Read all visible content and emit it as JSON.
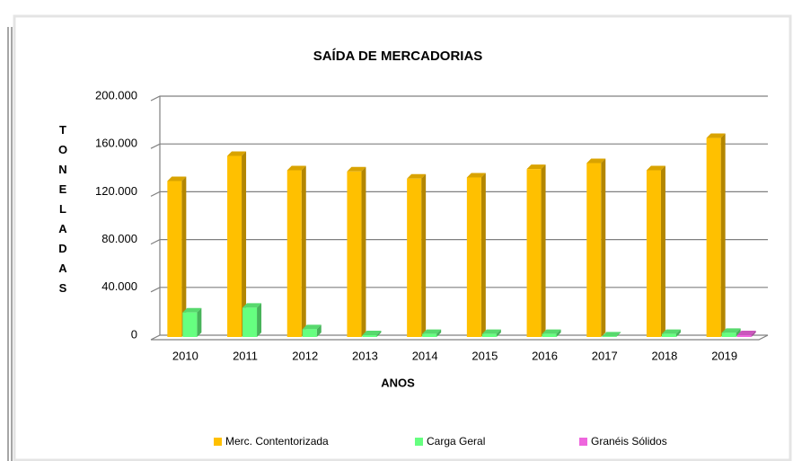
{
  "chart_data": {
    "type": "bar3d",
    "title": "SAÍDA DE MERCADORIAS",
    "x_label": "ANOS",
    "y_label": "TONELADAS",
    "categories": [
      "2010",
      "2011",
      "2012",
      "2013",
      "2014",
      "2015",
      "2016",
      "2017",
      "2018",
      "2019"
    ],
    "series": [
      {
        "name": "Merc. Contentorizada",
        "color": "#ffc000",
        "values": [
          132000,
          153000,
          141000,
          140000,
          134000,
          135000,
          142000,
          147000,
          141000,
          168000
        ]
      },
      {
        "name": "Carga Geral",
        "color": "#66ff80",
        "values": [
          22000,
          26000,
          8000,
          3000,
          4000,
          4000,
          4000,
          2000,
          4000,
          5000
        ]
      },
      {
        "name": "Granéis Sólidos",
        "color": "#ee66dd",
        "values": [
          null,
          null,
          null,
          null,
          null,
          null,
          null,
          null,
          null,
          3000
        ]
      }
    ],
    "ylim": [
      0,
      200000
    ],
    "yticks": [
      0,
      {
        "value": 40000,
        "label": "40.000"
      },
      {
        "value": 80000,
        "label": "80.000"
      },
      {
        "value": 120000,
        "label": "120.000"
      },
      {
        "value": 160000,
        "label": "160.000"
      },
      {
        "value": 200000,
        "label": "200.000"
      }
    ],
    "grid": true,
    "legend": "bottom"
  }
}
